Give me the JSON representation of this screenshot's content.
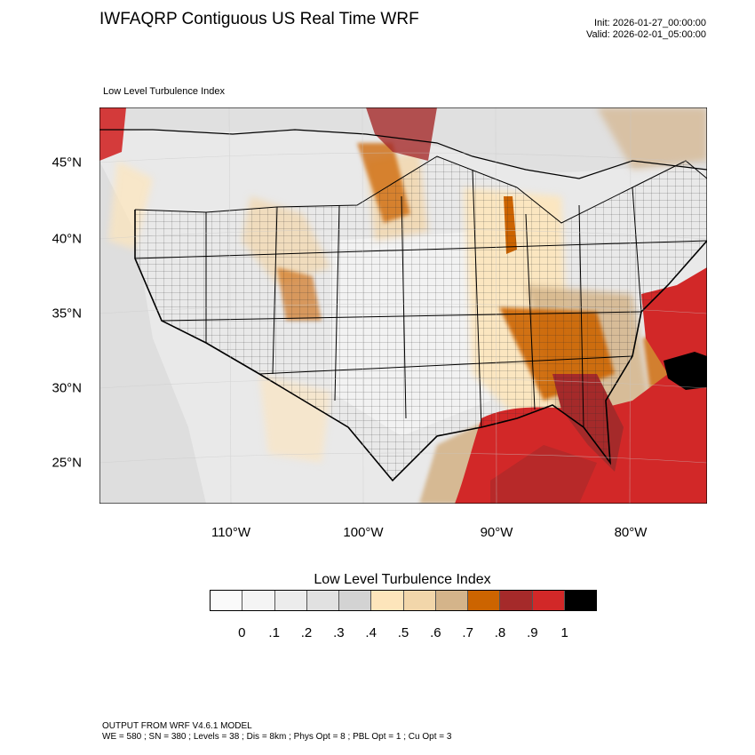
{
  "header": {
    "title": "IWFAQRP Contiguous US Real Time WRF",
    "init": "Init: 2026-01-27_00:00:00",
    "valid": "Valid: 2026-02-01_05:00:00",
    "subtitle": "Low Level Turbulence Index"
  },
  "map": {
    "region": "Contiguous United States",
    "lat_labels": [
      "45°N",
      "40°N",
      "35°N",
      "30°N",
      "25°N"
    ],
    "lon_labels": [
      "110°W",
      "100°W",
      "90°W",
      "80°W"
    ]
  },
  "colorbar": {
    "title": "Low Level Turbulence Index",
    "colors": [
      "#fafafa",
      "#f4f4f4",
      "#ececec",
      "#e1e1e1",
      "#d3d3d3",
      "#fde5bb",
      "#f2d6aa",
      "#d4b48a",
      "#cc6400",
      "#a52a2a",
      "#d22828",
      "#000000"
    ],
    "labels": [
      "0",
      ".1",
      ".2",
      ".3",
      ".4",
      ".5",
      ".6",
      ".7",
      ".8",
      ".9",
      "1"
    ]
  },
  "footer": {
    "line1": "OUTPUT FROM WRF V4.6.1 MODEL",
    "line2": "WE = 580 ; SN = 380 ; Levels = 38 ; Dis = 8km ; Phys Opt = 8 ; PBL Opt = 1 ; Cu Opt = 3"
  }
}
